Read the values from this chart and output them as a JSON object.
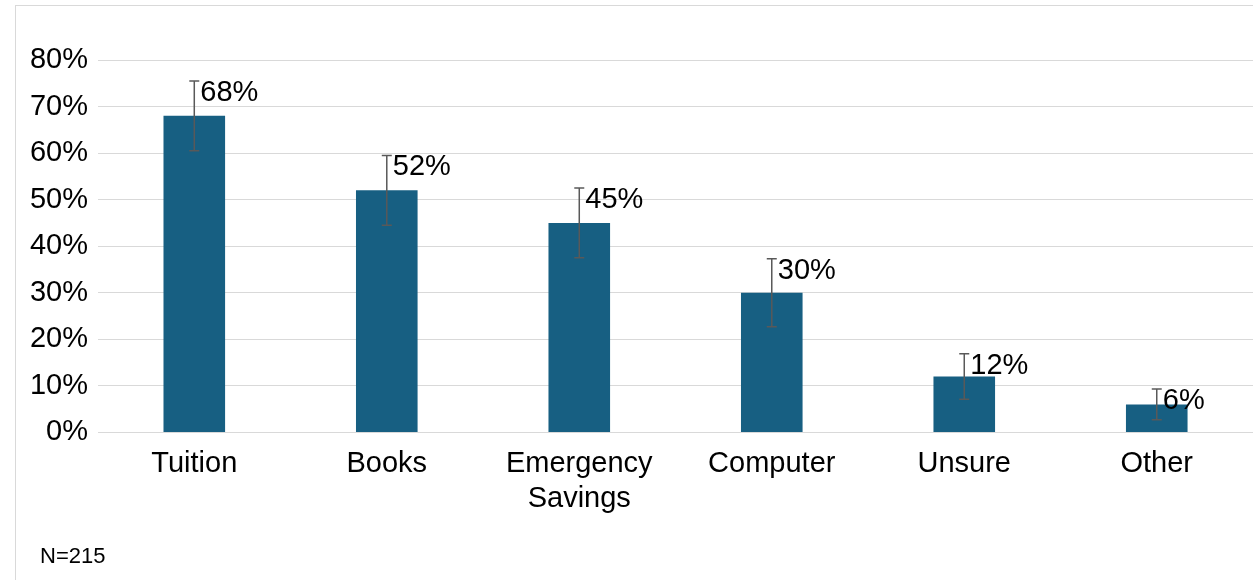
{
  "chart_data": {
    "type": "bar",
    "categories": [
      "Tuition",
      "Books",
      "Emergency Savings",
      "Computer",
      "Unsure",
      "Other"
    ],
    "values": [
      68,
      52,
      45,
      30,
      12,
      6
    ],
    "errors": [
      7.5,
      7.5,
      7.5,
      7.3,
      4.9,
      3.3
    ],
    "value_labels": [
      "68%",
      "52%",
      "45%",
      "30%",
      "12%",
      "6%"
    ],
    "color": "#175f82",
    "ylim": [
      0,
      80
    ],
    "yticks": [
      {
        "value": 0,
        "label": "0%"
      },
      {
        "value": 10,
        "label": "10%"
      },
      {
        "value": 20,
        "label": "20%"
      },
      {
        "value": 30,
        "label": "30%"
      },
      {
        "value": 40,
        "label": "40%"
      },
      {
        "value": 50,
        "label": "50%"
      },
      {
        "value": 60,
        "label": "60%"
      },
      {
        "value": 70,
        "label": "70%"
      },
      {
        "value": 80,
        "label": "80%"
      }
    ],
    "grid": "y",
    "legend": false,
    "annotations": [
      "N=215"
    ]
  }
}
